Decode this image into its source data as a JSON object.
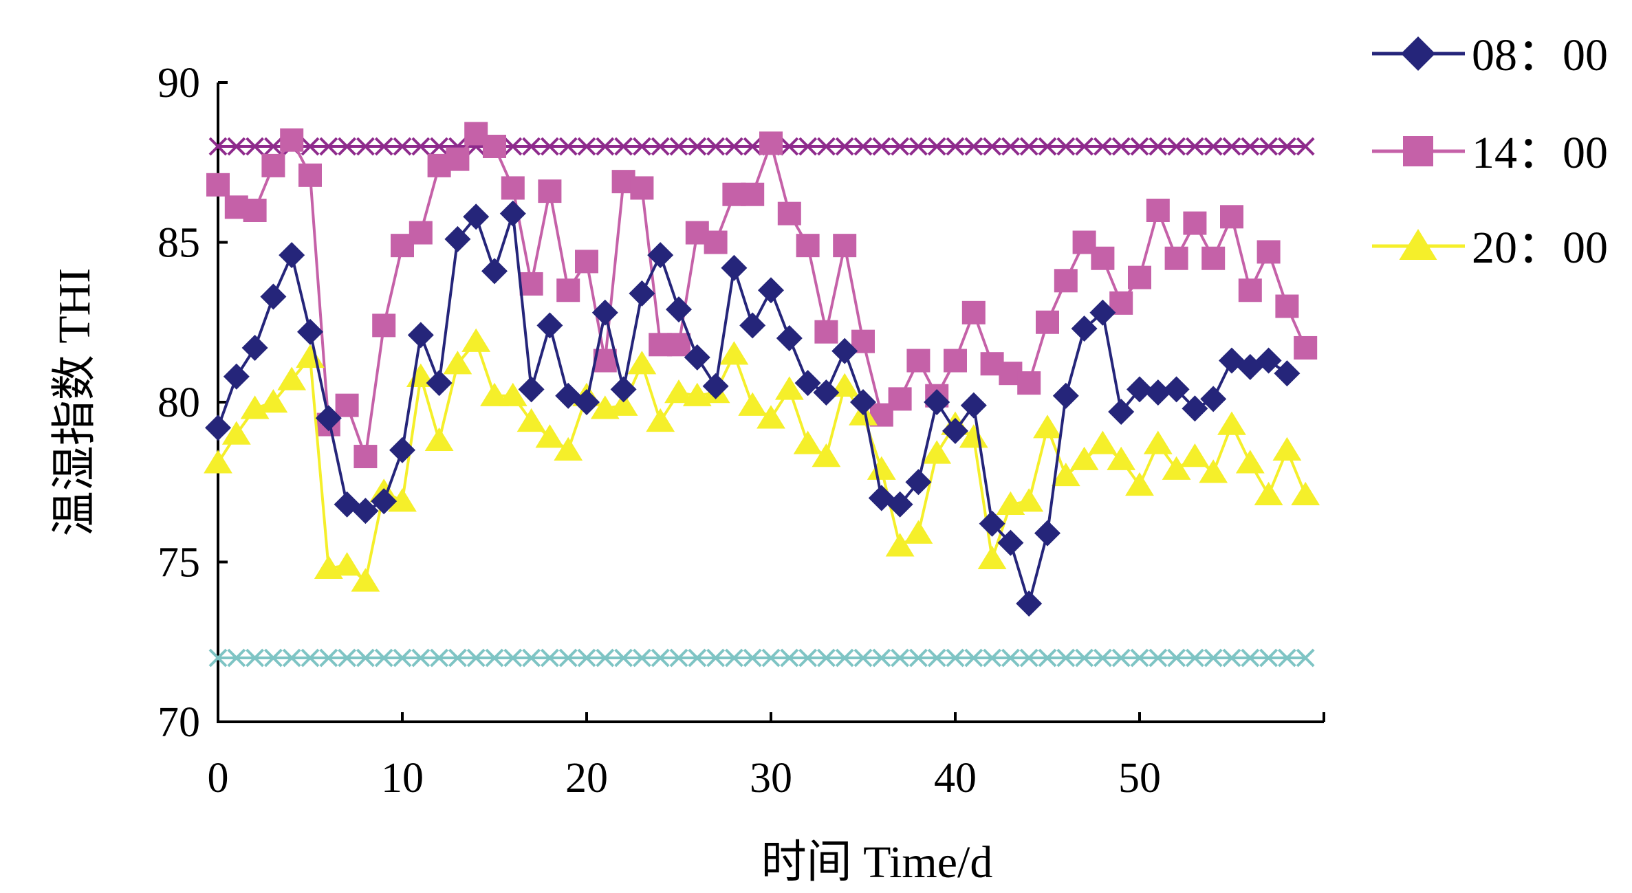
{
  "chart_data": {
    "type": "line",
    "title": "",
    "xlabel": "时间 Time/d",
    "ylabel": "温湿指数 THI",
    "xlim": [
      0,
      60
    ],
    "ylim": [
      70,
      90
    ],
    "xticks": [
      0,
      10,
      20,
      30,
      40,
      50
    ],
    "yticks": [
      70,
      75,
      80,
      85,
      90
    ],
    "xtick_labels": [
      "0",
      "10",
      "20",
      "30",
      "40",
      "50"
    ],
    "ytick_labels": [
      "70",
      "75",
      "80",
      "85",
      "90"
    ],
    "grid": false,
    "legend_position": "top-right",
    "x": [
      0,
      1,
      2,
      3,
      4,
      5,
      6,
      7,
      8,
      9,
      10,
      11,
      12,
      13,
      14,
      15,
      16,
      17,
      18,
      19,
      20,
      21,
      22,
      23,
      24,
      25,
      26,
      27,
      28,
      29,
      30,
      31,
      32,
      33,
      34,
      35,
      36,
      37,
      38,
      39,
      40,
      41,
      42,
      43,
      44,
      45,
      46,
      47,
      48,
      49,
      50,
      51,
      52,
      53,
      54,
      55,
      56,
      57,
      58,
      59
    ],
    "series": [
      {
        "name": "08：00",
        "color": "#25257a",
        "marker": "diamond",
        "values": [
          79.2,
          80.8,
          81.7,
          83.3,
          84.6,
          82.2,
          79.5,
          76.8,
          76.6,
          76.9,
          78.5,
          82.1,
          80.6,
          85.1,
          85.8,
          84.1,
          85.9,
          80.4,
          82.4,
          80.2,
          80.0,
          82.8,
          80.4,
          83.4,
          84.6,
          82.9,
          81.4,
          80.5,
          84.2,
          82.4,
          83.5,
          82.0,
          80.6,
          80.3,
          81.6,
          80.0,
          77.0,
          76.8,
          77.5,
          80.0,
          79.1,
          79.9,
          76.2,
          75.6,
          73.7,
          75.9,
          80.2,
          82.3,
          82.8,
          79.7,
          80.4,
          80.3,
          80.4,
          79.8,
          80.1,
          81.3,
          81.1,
          81.3,
          80.9,
          null
        ]
      },
      {
        "name": "14：00",
        "color": "#c561a8",
        "marker": "square",
        "values": [
          86.8,
          86.1,
          86.0,
          87.4,
          88.2,
          87.1,
          79.3,
          79.9,
          78.3,
          82.4,
          84.9,
          85.3,
          87.4,
          87.6,
          88.4,
          88.0,
          86.7,
          83.7,
          86.6,
          83.5,
          84.4,
          81.3,
          86.9,
          86.7,
          81.8,
          81.8,
          85.3,
          85.0,
          86.5,
          86.5,
          88.1,
          85.9,
          84.9,
          82.2,
          84.9,
          81.9,
          79.6,
          80.1,
          81.3,
          80.2,
          81.3,
          82.8,
          81.2,
          80.9,
          80.6,
          82.5,
          83.8,
          85.0,
          84.5,
          83.1,
          83.9,
          86.0,
          84.5,
          85.6,
          84.5,
          85.8,
          83.5,
          84.7,
          83.0,
          81.7
        ]
      },
      {
        "name": "20：00",
        "color": "#f5ef2a",
        "marker": "triangle",
        "values": [
          78.1,
          79.0,
          79.8,
          80.0,
          80.7,
          81.4,
          74.8,
          74.9,
          74.4,
          77.2,
          76.9,
          80.8,
          78.8,
          81.2,
          81.9,
          80.2,
          80.2,
          79.4,
          78.9,
          78.5,
          80.2,
          79.8,
          79.9,
          81.2,
          79.4,
          80.3,
          80.2,
          80.3,
          81.5,
          79.9,
          79.5,
          80.4,
          78.7,
          78.3,
          80.5,
          79.6,
          77.9,
          75.5,
          75.9,
          78.4,
          79.3,
          78.9,
          75.1,
          76.8,
          76.9,
          79.2,
          77.7,
          78.2,
          78.7,
          78.2,
          77.4,
          78.7,
          77.9,
          78.3,
          77.8,
          79.3,
          78.1,
          77.1,
          78.5,
          77.1
        ]
      },
      {
        "name": "",
        "color": "#8e2a8c",
        "marker": "x",
        "values": [
          88,
          88,
          88,
          88,
          88,
          88,
          88,
          88,
          88,
          88,
          88,
          88,
          88,
          88,
          88,
          88,
          88,
          88,
          88,
          88,
          88,
          88,
          88,
          88,
          88,
          88,
          88,
          88,
          88,
          88,
          88,
          88,
          88,
          88,
          88,
          88,
          88,
          88,
          88,
          88,
          88,
          88,
          88,
          88,
          88,
          88,
          88,
          88,
          88,
          88,
          88,
          88,
          88,
          88,
          88,
          88,
          88,
          88,
          88,
          88
        ]
      },
      {
        "name": "",
        "color": "#7ec4c4",
        "marker": "x",
        "values": [
          72,
          72,
          72,
          72,
          72,
          72,
          72,
          72,
          72,
          72,
          72,
          72,
          72,
          72,
          72,
          72,
          72,
          72,
          72,
          72,
          72,
          72,
          72,
          72,
          72,
          72,
          72,
          72,
          72,
          72,
          72,
          72,
          72,
          72,
          72,
          72,
          72,
          72,
          72,
          72,
          72,
          72,
          72,
          72,
          72,
          72,
          72,
          72,
          72,
          72,
          72,
          72,
          72,
          72,
          72,
          72,
          72,
          72,
          72,
          72
        ]
      }
    ]
  }
}
